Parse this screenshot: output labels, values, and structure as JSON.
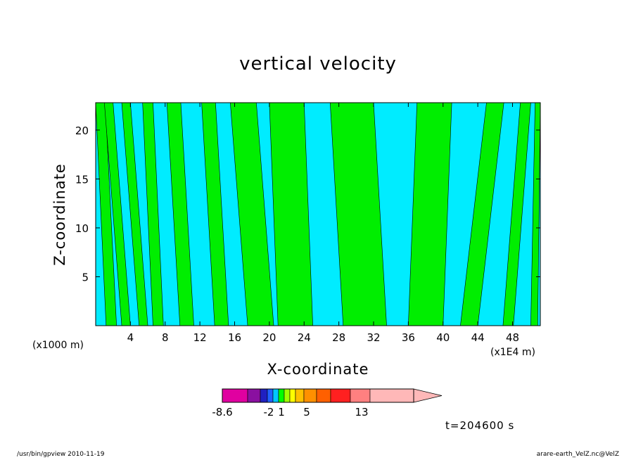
{
  "chart_data": {
    "type": "heatmap",
    "title": "vertical velocity",
    "xlabel": "X-coordinate",
    "ylabel": "Z-coordinate",
    "x_unit_label": "(x1000 m)",
    "x_scale_label": "(x1E4 m)",
    "x_ticks": [
      4,
      8,
      12,
      16,
      20,
      24,
      28,
      32,
      36,
      40,
      44,
      48
    ],
    "y_ticks": [
      5,
      10,
      15,
      20
    ],
    "xlim": [
      0,
      51.2
    ],
    "ylim": [
      0,
      22.8
    ],
    "time_label": "t=204600 s",
    "colorbar": {
      "tick_labels": [
        "-8.6",
        "-2",
        "1",
        "5",
        "13"
      ],
      "colors": [
        "#e000a0",
        "#8a10a0",
        "#2020c0",
        "#2060ff",
        "#00c8ff",
        "#00ff00",
        "#a0ff00",
        "#ffff00",
        "#ffc000",
        "#ff9000",
        "#ff6000",
        "#ff2020",
        "#ff8080",
        "#ffb8b8"
      ]
    },
    "field": {
      "levels_shown": [
        "#00ecff",
        "#00ee00"
      ],
      "note_colors": {
        "negative": "#00ecff",
        "positive": "#00ee00"
      },
      "bands": [
        {
          "x_base": 1.8,
          "x_top": 0.5,
          "half_width": 0.6
        },
        {
          "x_base": 3.5,
          "x_top": 1.5,
          "half_width": 0.5
        },
        {
          "x_base": 5.5,
          "x_top": 3.5,
          "half_width": 0.5
        },
        {
          "x_base": 7.2,
          "x_top": 6.0,
          "half_width": 0.6
        },
        {
          "x_base": 10.5,
          "x_top": 9.0,
          "half_width": 0.8
        },
        {
          "x_base": 14.5,
          "x_top": 13.0,
          "half_width": 0.8
        },
        {
          "x_base": 19.0,
          "x_top": 17.0,
          "half_width": 1.5
        },
        {
          "x_base": 23.0,
          "x_top": 22.0,
          "half_width": 2.0
        },
        {
          "x_base": 31.0,
          "x_top": 29.5,
          "half_width": 2.5
        },
        {
          "x_base": 38.0,
          "x_top": 39.0,
          "half_width": 2.0
        },
        {
          "x_base": 43.0,
          "x_top": 46.0,
          "half_width": 1.0
        },
        {
          "x_base": 47.5,
          "x_top": 49.5,
          "half_width": 0.6
        },
        {
          "x_base": 50.5,
          "x_top": 51.0,
          "half_width": 0.4
        }
      ]
    }
  },
  "footer": {
    "left": "/usr/bin/gpview   2010-11-19",
    "right": "arare-earth_VelZ.nc@VelZ"
  }
}
